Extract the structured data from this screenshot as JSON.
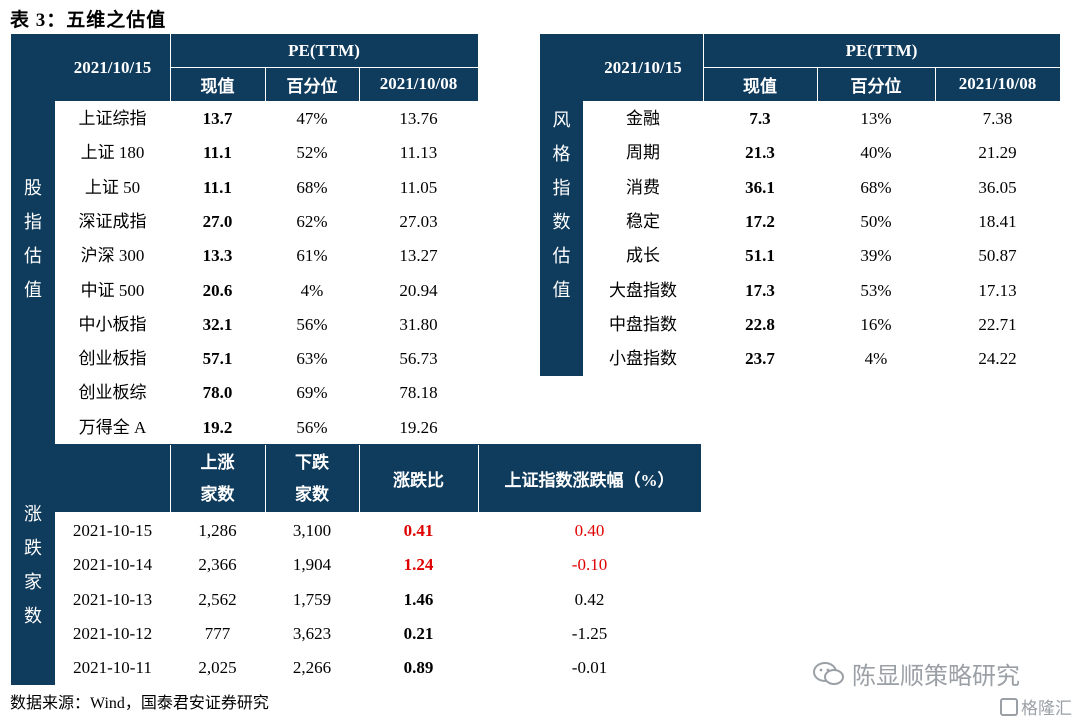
{
  "title": "表 3：五维之估值",
  "left_table": {
    "date_label": "2021/10/15",
    "pe_label": "PE(TTM)",
    "col_current": "现值",
    "col_percentile": "百分位",
    "col_prev": "2021/10/08",
    "side_label": [
      "股",
      "指",
      "估",
      "值"
    ],
    "rows": [
      {
        "name": "上证综指",
        "current": "13.7",
        "pct": "47%",
        "prev": "13.76"
      },
      {
        "name": "上证 180",
        "current": "11.1",
        "pct": "52%",
        "prev": "11.13"
      },
      {
        "name": "上证 50",
        "current": "11.1",
        "pct": "68%",
        "prev": "11.05"
      },
      {
        "name": "深证成指",
        "current": "27.0",
        "pct": "62%",
        "prev": "27.03"
      },
      {
        "name": "沪深 300",
        "current": "13.3",
        "pct": "61%",
        "prev": "13.27"
      },
      {
        "name": "中证 500",
        "current": "20.6",
        "pct": "4%",
        "prev": "20.94"
      },
      {
        "name": "中小板指",
        "current": "32.1",
        "pct": "56%",
        "prev": "31.80"
      },
      {
        "name": "创业板指",
        "current": "57.1",
        "pct": "63%",
        "prev": "56.73"
      },
      {
        "name": "创业板综",
        "current": "78.0",
        "pct": "69%",
        "prev": "78.18"
      },
      {
        "name": "万得全 A",
        "current": "19.2",
        "pct": "56%",
        "prev": "19.26"
      }
    ]
  },
  "right_table": {
    "date_label": "2021/10/15",
    "pe_label": "PE(TTM)",
    "col_current": "现值",
    "col_percentile": "百分位",
    "col_prev": "2021/10/08",
    "side_label": [
      "风",
      "格",
      "指",
      "数",
      "估",
      "值"
    ],
    "rows": [
      {
        "name": "金融",
        "current": "7.3",
        "pct": "13%",
        "prev": "7.38"
      },
      {
        "name": "周期",
        "current": "21.3",
        "pct": "40%",
        "prev": "21.29"
      },
      {
        "name": "消费",
        "current": "36.1",
        "pct": "68%",
        "prev": "36.05"
      },
      {
        "name": "稳定",
        "current": "17.2",
        "pct": "50%",
        "prev": "18.41"
      },
      {
        "name": "成长",
        "current": "51.1",
        "pct": "39%",
        "prev": "50.87"
      },
      {
        "name": "大盘指数",
        "current": "17.3",
        "pct": "53%",
        "prev": "17.13"
      },
      {
        "name": "中盘指数",
        "current": "22.8",
        "pct": "16%",
        "prev": "22.71"
      },
      {
        "name": "小盘指数",
        "current": "23.7",
        "pct": "4%",
        "prev": "24.22"
      }
    ]
  },
  "breadth_table": {
    "side_label": [
      "涨",
      "跌",
      "家",
      "数"
    ],
    "col_up": [
      "上涨",
      "家数"
    ],
    "col_down": [
      "下跌",
      "家数"
    ],
    "col_ratio": "涨跌比",
    "col_change": "上证指数涨跌幅（%）",
    "rows": [
      {
        "date": "2021-10-15",
        "up": "1,286",
        "down": "3,100",
        "ratio": "0.41",
        "change": "0.40",
        "highlight": true
      },
      {
        "date": "2021-10-14",
        "up": "2,366",
        "down": "1,904",
        "ratio": "1.24",
        "change": "-0.10",
        "highlight": true
      },
      {
        "date": "2021-10-13",
        "up": "2,562",
        "down": "1,759",
        "ratio": "1.46",
        "change": "0.42",
        "highlight": false
      },
      {
        "date": "2021-10-12",
        "up": "777",
        "down": "3,623",
        "ratio": "0.21",
        "change": "-1.25",
        "highlight": false
      },
      {
        "date": "2021-10-11",
        "up": "2,025",
        "down": "2,266",
        "ratio": "0.89",
        "change": "-0.01",
        "highlight": false
      }
    ]
  },
  "footer": "数据来源：Wind，国泰君安证券研究",
  "watermark": "陈显顺策略研究",
  "watermark_logo": "格隆汇",
  "colors": {
    "header_bg": "#0f3b5c",
    "highlight": "#e00000"
  }
}
